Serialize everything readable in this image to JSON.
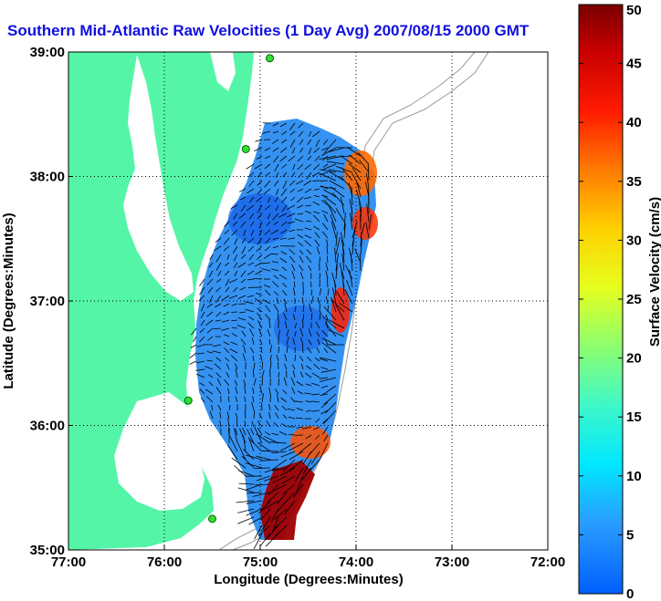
{
  "title": "Southern Mid-Atlantic Raw Velocities (1 Day Avg) 2007/08/15 2000 GMT",
  "map": {
    "x_axis": {
      "label": "Longitude (Degrees:Minutes)",
      "ticks": [
        "77:00",
        "76:00",
        "75:00",
        "74:00",
        "73:00",
        "72:00"
      ]
    },
    "y_axis": {
      "label": "Latitude (Degrees:Minutes)",
      "ticks": [
        "39:00",
        "38:00",
        "37:00",
        "36:00",
        "35:00"
      ]
    },
    "xlim": [
      -77,
      -72
    ],
    "ylim": [
      35,
      39
    ],
    "grid": "dotted",
    "land_color": "#55f5a8",
    "water_color": "#ffffff",
    "stations": [
      {
        "lon": -74.9,
        "lat": 38.95
      },
      {
        "lon": -75.15,
        "lat": 38.22
      },
      {
        "lon": -75.75,
        "lat": 36.2
      },
      {
        "lon": -75.5,
        "lat": 35.25
      }
    ]
  },
  "colorbar": {
    "label": "Surface Velocity (cm/s)",
    "units": "cm/s",
    "range": [
      0,
      50
    ],
    "ticks": [
      "0",
      "5",
      "10",
      "15",
      "20",
      "25",
      "30",
      "35",
      "40",
      "45",
      "50"
    ]
  }
}
